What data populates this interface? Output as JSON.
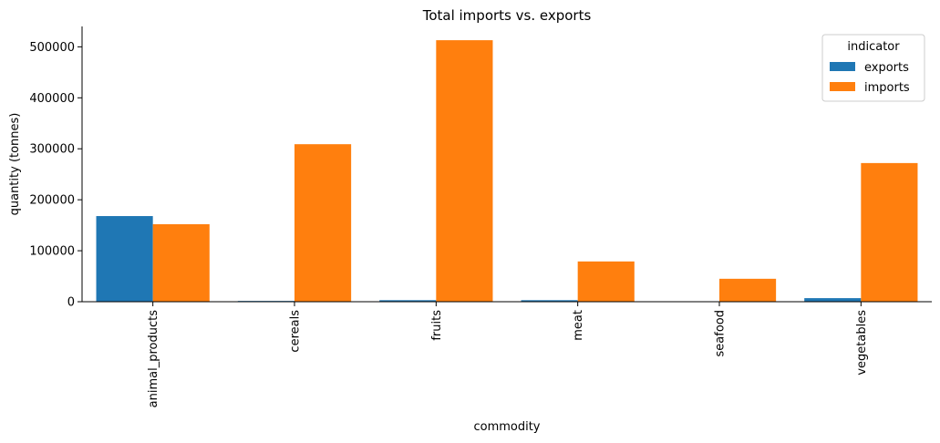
{
  "chart_data": {
    "type": "bar",
    "title": "Total imports vs. exports",
    "xlabel": "commodity",
    "ylabel": "quantity (tonnes)",
    "categories": [
      "animal_products",
      "cereals",
      "fruits",
      "meat",
      "seafood",
      "vegetables"
    ],
    "series": [
      {
        "name": "exports",
        "color": "#1f77b4",
        "values": [
          168000,
          1500,
          3000,
          3000,
          0,
          7000
        ]
      },
      {
        "name": "imports",
        "color": "#ff7f0e",
        "values": [
          152000,
          309000,
          513000,
          79000,
          45000,
          272000
        ]
      }
    ],
    "ylim": [
      0,
      540000
    ],
    "yticks": [
      0,
      100000,
      200000,
      300000,
      400000,
      500000
    ],
    "grid": false,
    "legend": {
      "title": "indicator",
      "placement": "top-right"
    }
  }
}
